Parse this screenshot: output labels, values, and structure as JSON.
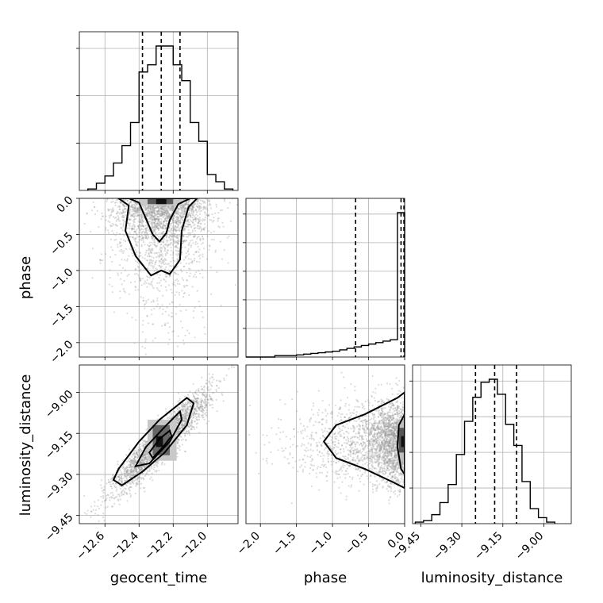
{
  "chart_data": [
    {
      "panel": "geocent_time-histogram",
      "type": "histogram",
      "parameter": "geocent_time",
      "xlim": [
        -12.75,
        -11.82
      ],
      "grid": true,
      "xticks": [
        -12.6,
        -12.4,
        -12.2,
        -12.0
      ],
      "bin_edges": [
        -12.7,
        -12.65,
        -12.6,
        -12.55,
        -12.5,
        -12.45,
        -12.4,
        -12.35,
        -12.3,
        -12.25,
        -12.2,
        -12.15,
        -12.1,
        -12.05,
        -12.0,
        -11.95,
        -11.9,
        -11.85
      ],
      "counts": [
        0.01,
        0.05,
        0.1,
        0.19,
        0.31,
        0.47,
        0.82,
        0.87,
        1.0,
        1.0,
        0.87,
        0.76,
        0.47,
        0.34,
        0.11,
        0.06,
        0.01
      ],
      "quantiles": [
        -12.38,
        -12.27,
        -12.16
      ]
    },
    {
      "panel": "phase-histogram",
      "type": "histogram",
      "parameter": "phase",
      "xlim": [
        -2.2,
        0.0
      ],
      "grid": true,
      "xticks": [
        -2.0,
        -1.5,
        -1.0,
        -0.5,
        0.0
      ],
      "bin_edges": [
        -2.2,
        -2.1,
        -2.0,
        -1.9,
        -1.8,
        -1.7,
        -1.6,
        -1.5,
        -1.4,
        -1.3,
        -1.2,
        -1.1,
        -1.0,
        -0.9,
        -0.8,
        -0.7,
        -0.6,
        -0.5,
        -0.4,
        -0.3,
        -0.2,
        -0.1,
        -0.05,
        0.0
      ],
      "counts": [
        0.0,
        0.0,
        0.0,
        0.0,
        0.01,
        0.01,
        0.01,
        0.015,
        0.02,
        0.025,
        0.03,
        0.035,
        0.04,
        0.05,
        0.06,
        0.07,
        0.08,
        0.09,
        0.1,
        0.11,
        0.12,
        1.0,
        1.0
      ],
      "quantiles": [
        -0.68,
        -0.05,
        -0.01
      ]
    },
    {
      "panel": "luminosity_distance-histogram",
      "type": "histogram",
      "parameter": "luminosity_distance",
      "xlim": [
        -9.48,
        -8.9
      ],
      "grid": true,
      "xticks": [
        -9.45,
        -9.3,
        -9.15,
        -9.0
      ],
      "bin_edges": [
        -9.47,
        -9.44,
        -9.41,
        -9.38,
        -9.35,
        -9.32,
        -9.29,
        -9.26,
        -9.23,
        -9.2,
        -9.17,
        -9.14,
        -9.11,
        -9.08,
        -9.05,
        -9.02,
        -8.99,
        -8.96
      ],
      "counts": [
        0.01,
        0.02,
        0.06,
        0.14,
        0.26,
        0.46,
        0.68,
        0.84,
        0.94,
        0.96,
        0.86,
        0.66,
        0.52,
        0.28,
        0.1,
        0.04,
        0.01
      ],
      "quantiles": [
        -9.25,
        -9.18,
        -9.1
      ]
    },
    {
      "panel": "phase-vs-geocent_time",
      "type": "scatter",
      "x_parameter": "geocent_time",
      "y_parameter": "phase",
      "ylabel": "phase",
      "xlim": [
        -12.75,
        -11.82
      ],
      "ylim": [
        -2.2,
        0.0
      ],
      "yticks": [
        0.0,
        -0.5,
        -1.0,
        -1.5,
        -2.0
      ],
      "grid": true,
      "density_peak": [
        -12.27,
        -0.02
      ]
    },
    {
      "panel": "luminosity_distance-vs-geocent_time",
      "type": "scatter",
      "x_parameter": "geocent_time",
      "y_parameter": "luminosity_distance",
      "xlabel": "geocent_time",
      "ylabel": "luminosity_distance",
      "xlim": [
        -12.75,
        -11.82
      ],
      "ylim": [
        -9.48,
        -8.9
      ],
      "xticks": [
        -12.6,
        -12.4,
        -12.2,
        -12.0
      ],
      "yticks": [
        -9.0,
        -9.15,
        -9.3,
        -9.45
      ],
      "grid": true,
      "density_peak": [
        -12.27,
        -9.18
      ]
    },
    {
      "panel": "luminosity_distance-vs-phase",
      "type": "scatter",
      "x_parameter": "phase",
      "y_parameter": "luminosity_distance",
      "xlabel": "phase",
      "xlim": [
        -2.2,
        0.0
      ],
      "ylim": [
        -9.48,
        -8.9
      ],
      "xticks": [
        -2.0,
        -1.5,
        -1.0,
        -0.5,
        0.0
      ],
      "grid": true,
      "density_peak": [
        -0.01,
        -9.18
      ]
    }
  ],
  "labels": {
    "x_geocent": "geocent_time",
    "x_phase": "phase",
    "x_lumdist": "luminosity_distance",
    "y_phase": "phase",
    "y_lumdist": "luminosity_distance"
  }
}
